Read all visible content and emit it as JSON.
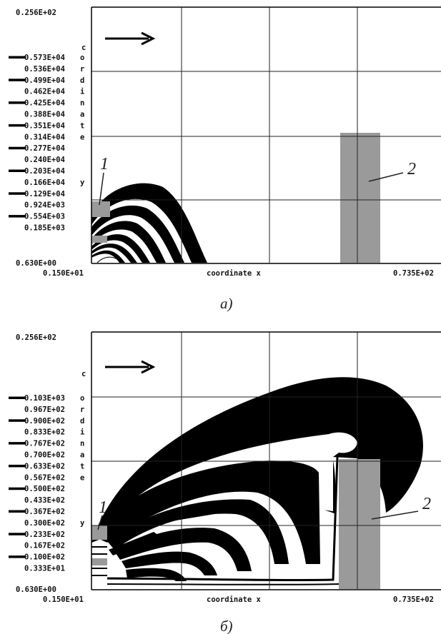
{
  "chart_data": [
    {
      "type": "heatmap",
      "caption": "а)",
      "xlabel": "coordinate  x",
      "ylabel": "coordinate  y",
      "xlim": [
        1.5,
        73.5
      ],
      "ylim": [
        0.63,
        25.6
      ],
      "x_range_labels": [
        "0.150E+01",
        "0.735E+02"
      ],
      "y_range_labels": [
        "0.630E+00",
        "0.256E+02"
      ],
      "contour_levels": [
        "0.573E+04",
        "0.536E+04",
        "0.499E+04",
        "0.462E+04",
        "0.425E+04",
        "0.388E+04",
        "0.351E+04",
        "0.314E+04",
        "0.277E+04",
        "0.240E+04",
        "0.203E+04",
        "0.166E+04",
        "0.129E+04",
        "0.924E+03",
        "0.554E+03",
        "0.185E+03"
      ],
      "marker_levels": [
        0,
        2,
        4,
        6,
        8,
        10,
        12,
        14
      ],
      "annotations": [
        "1",
        "2"
      ]
    },
    {
      "type": "heatmap",
      "caption": "б)",
      "xlabel": "coordinate  x",
      "ylabel": "coordinate  y",
      "xlim": [
        1.5,
        73.5
      ],
      "ylim": [
        0.63,
        25.6
      ],
      "x_range_labels": [
        "0.150E+01",
        "0.735E+02"
      ],
      "y_range_labels": [
        "0.630E+00",
        "0.256E+02"
      ],
      "contour_levels": [
        "0.103E+03",
        "0.967E+02",
        "0.900E+02",
        "0.833E+02",
        "0.767E+02",
        "0.700E+02",
        "0.633E+02",
        "0.567E+02",
        "0.500E+02",
        "0.433E+02",
        "0.367E+02",
        "0.300E+02",
        "0.233E+02",
        "0.167E+02",
        "0.100E+02",
        "0.333E+01"
      ],
      "marker_levels": [
        0,
        2,
        4,
        6,
        8,
        10,
        12,
        14
      ],
      "annotations": [
        "1",
        "2"
      ]
    }
  ]
}
